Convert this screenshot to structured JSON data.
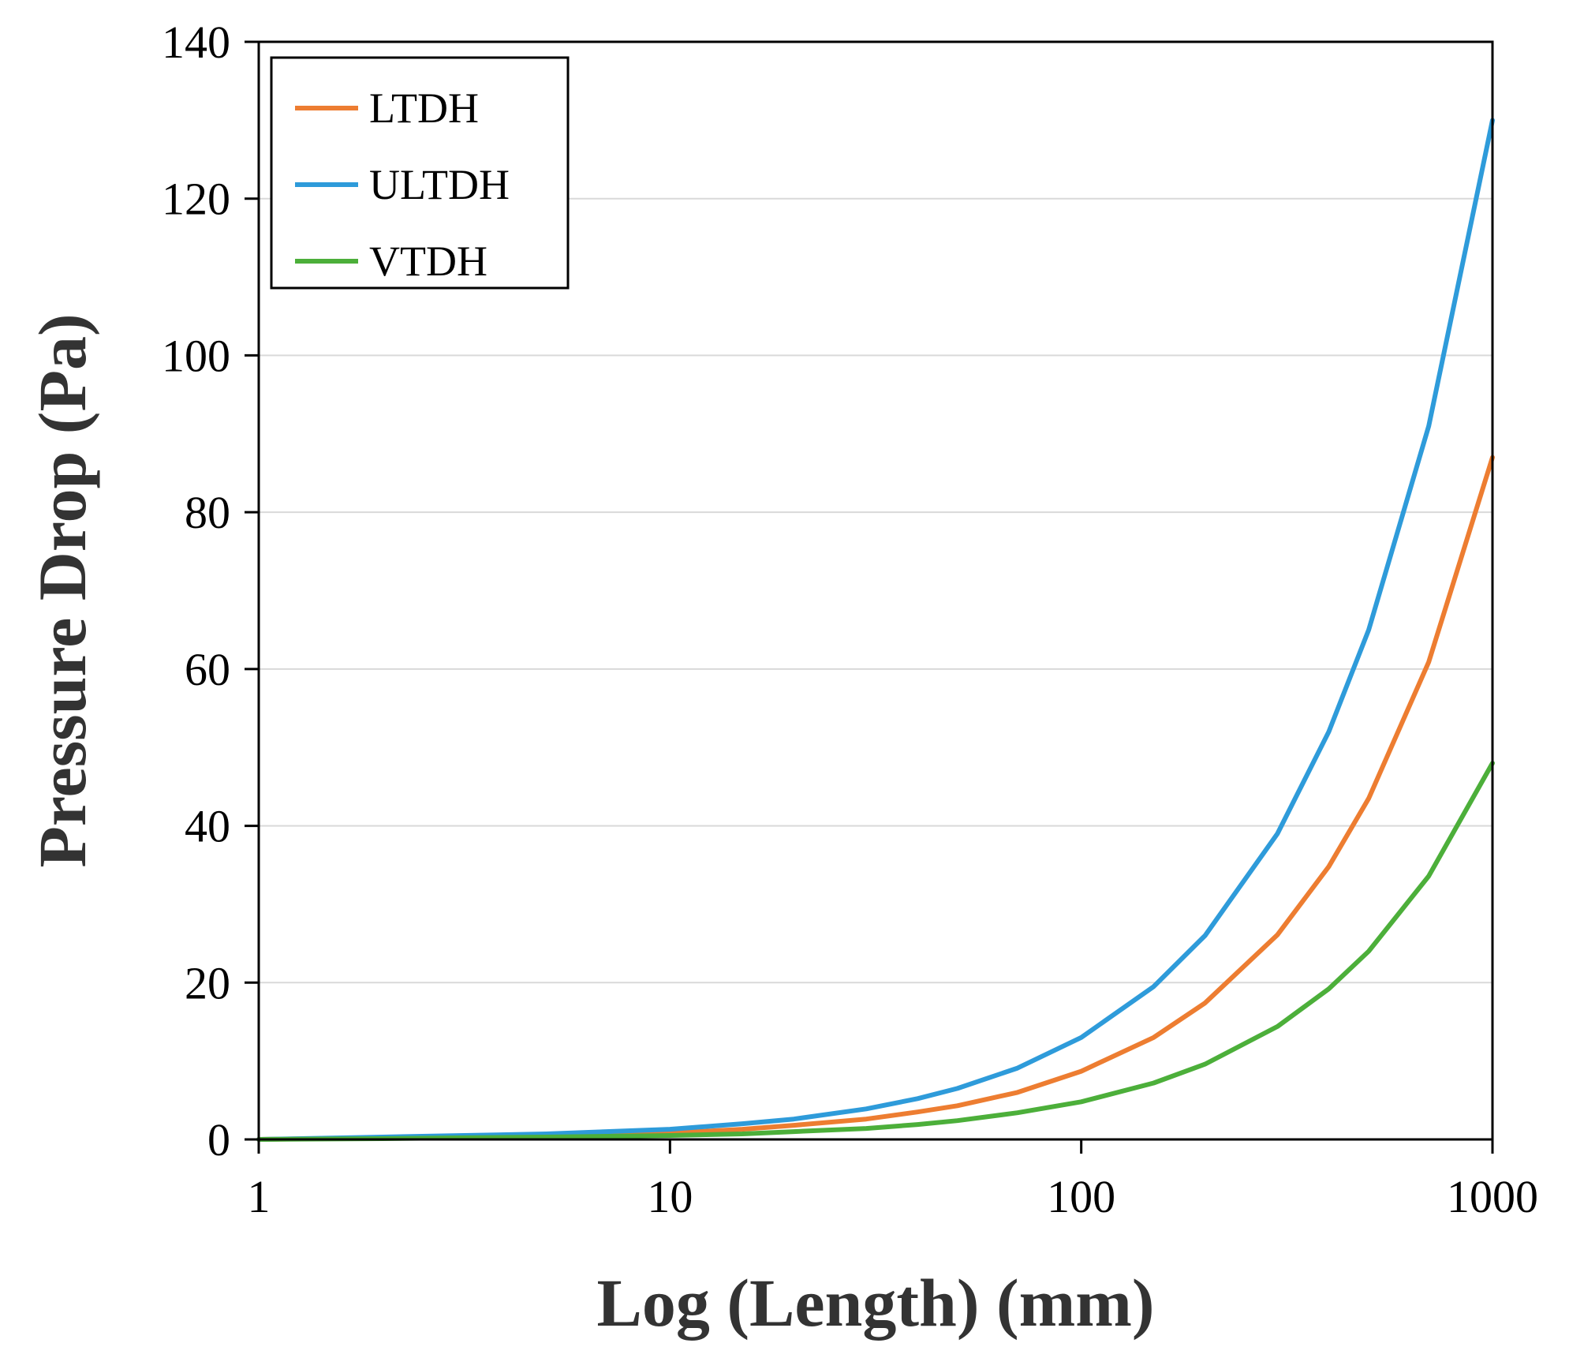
{
  "chart_data": {
    "type": "line",
    "xscale": "log",
    "xlabel": "Log (Length) (mm)",
    "ylabel": "Pressure Drop (Pa)",
    "xlim": [
      1,
      1000
    ],
    "ylim": [
      0,
      140
    ],
    "xticks": [
      1,
      10,
      100,
      1000
    ],
    "xtick_labels": [
      "1",
      "10",
      "100",
      "1000"
    ],
    "yticks": [
      0,
      20,
      40,
      60,
      80,
      100,
      120,
      140
    ],
    "ytick_labels": [
      "0",
      "20",
      "40",
      "60",
      "80",
      "100",
      "120",
      "140"
    ],
    "grid": "horizontal",
    "legend_position": "top-left",
    "series": [
      {
        "name": "LTDH",
        "color": "#ED7D31",
        "x": [
          1,
          2,
          5,
          10,
          15,
          20,
          30,
          40,
          50,
          70,
          100,
          150,
          200,
          300,
          400,
          500,
          700,
          1000
        ],
        "y": [
          0,
          0.2,
          0.4,
          0.8,
          1.3,
          1.8,
          2.6,
          3.5,
          4.3,
          6.0,
          8.7,
          13.0,
          17.4,
          26.1,
          34.8,
          43.5,
          60.9,
          87
        ]
      },
      {
        "name": "ULTDH",
        "color": "#2E9BDA",
        "x": [
          1,
          2,
          5,
          10,
          15,
          20,
          30,
          40,
          50,
          70,
          100,
          150,
          200,
          300,
          400,
          500,
          700,
          1000
        ],
        "y": [
          0,
          0.3,
          0.7,
          1.3,
          2.0,
          2.6,
          3.9,
          5.2,
          6.5,
          9.1,
          13.0,
          19.5,
          26.0,
          39.0,
          52.0,
          65.0,
          91.0,
          130
        ]
      },
      {
        "name": "VTDH",
        "color": "#4CAF3A",
        "x": [
          1,
          2,
          5,
          10,
          15,
          20,
          30,
          40,
          50,
          70,
          100,
          150,
          200,
          300,
          400,
          500,
          700,
          1000
        ],
        "y": [
          0,
          0.1,
          0.3,
          0.5,
          0.7,
          1.0,
          1.4,
          1.9,
          2.4,
          3.4,
          4.8,
          7.2,
          9.6,
          14.4,
          19.2,
          24.0,
          33.6,
          48
        ]
      }
    ]
  }
}
